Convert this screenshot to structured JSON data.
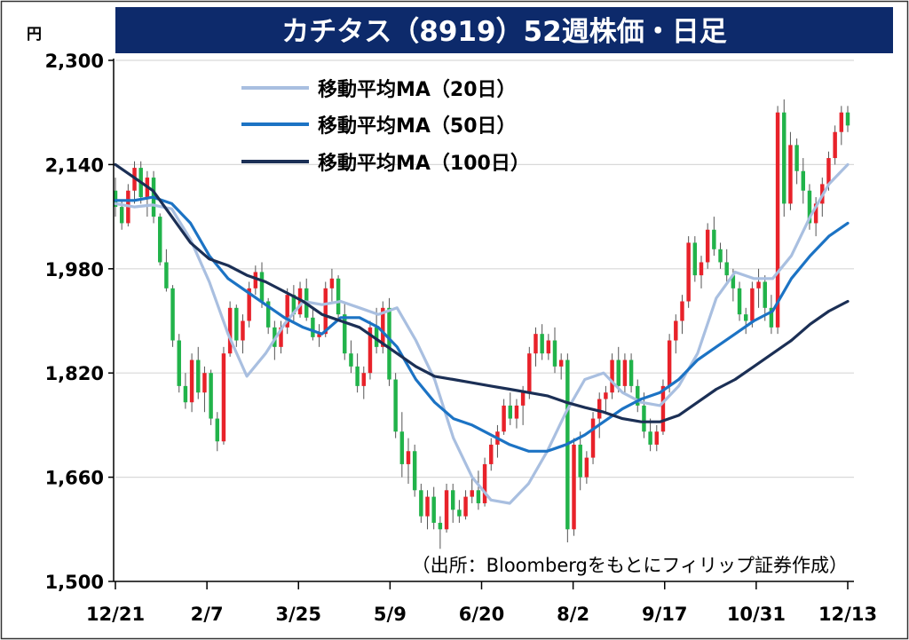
{
  "title": "カチタス（8919）52週株価・日足",
  "unit_label": "円",
  "source_note": "（出所：Bloombergをもとにフィリップ証券作成）",
  "colors": {
    "title_bg": "#0d2a6b",
    "up": "#e8222a",
    "down": "#21b34a",
    "ma20": "#a9bfe0",
    "ma50": "#1c73c4",
    "ma100": "#1b2f55",
    "grid": "#d9d9d9"
  },
  "chart_data": {
    "type": "candlestick",
    "ylim": [
      1500,
      2300
    ],
    "yticks": [
      1500,
      1660,
      1820,
      1980,
      2140,
      2300
    ],
    "ytick_labels": [
      "1,500",
      "1,660",
      "1,820",
      "1,980",
      "2,140",
      "2,300"
    ],
    "x_tick_labels": [
      "12/21",
      "2/7",
      "3/25",
      "5/9",
      "6/20",
      "8/2",
      "9/17",
      "10/31",
      "12/13"
    ],
    "legend": [
      "移動平均MA（20日）",
      "移動平均MA（50日）",
      "移動平均MA（100日）"
    ],
    "series": [
      {
        "name": "移動平均MA（20日）",
        "values": [
          2080,
          2075,
          2078,
          2072,
          2025,
          1960,
          1880,
          1815,
          1850,
          1895,
          1930,
          1925,
          1930,
          1920,
          1910,
          1920,
          1870,
          1810,
          1720,
          1660,
          1625,
          1620,
          1650,
          1700,
          1760,
          1810,
          1820,
          1790,
          1775,
          1770,
          1800,
          1850,
          1935,
          1975,
          1965,
          1965,
          2000,
          2060,
          2110,
          2140
        ]
      },
      {
        "name": "移動平均MA（50日）",
        "values": [
          2085,
          2085,
          2090,
          2080,
          2050,
          2000,
          1965,
          1945,
          1925,
          1905,
          1890,
          1880,
          1905,
          1905,
          1890,
          1860,
          1810,
          1775,
          1750,
          1740,
          1725,
          1710,
          1700,
          1700,
          1710,
          1725,
          1745,
          1765,
          1780,
          1790,
          1810,
          1840,
          1860,
          1880,
          1900,
          1915,
          1965,
          2000,
          2030,
          2050
        ]
      },
      {
        "name": "移動平均MA（100日）",
        "values": [
          2140,
          2120,
          2100,
          2060,
          2020,
          1995,
          1985,
          1970,
          1960,
          1945,
          1930,
          1910,
          1900,
          1890,
          1870,
          1850,
          1830,
          1815,
          1810,
          1805,
          1800,
          1795,
          1790,
          1785,
          1775,
          1767,
          1760,
          1750,
          1745,
          1745,
          1755,
          1775,
          1795,
          1810,
          1830,
          1850,
          1870,
          1895,
          1915,
          1930
        ]
      }
    ],
    "candles": [
      [
        2100,
        2120,
        2060,
        2075
      ],
      [
        2075,
        2085,
        2040,
        2050
      ],
      [
        2050,
        2110,
        2045,
        2100
      ],
      [
        2100,
        2145,
        2080,
        2135
      ],
      [
        2135,
        2145,
        2080,
        2090
      ],
      [
        2090,
        2130,
        2060,
        2120
      ],
      [
        2120,
        2130,
        2050,
        2060
      ],
      [
        2060,
        2065,
        1985,
        1990
      ],
      [
        1990,
        2010,
        1945,
        1950
      ],
      [
        1950,
        1955,
        1860,
        1870
      ],
      [
        1870,
        1880,
        1790,
        1800
      ],
      [
        1800,
        1820,
        1765,
        1775
      ],
      [
        1775,
        1850,
        1760,
        1840
      ],
      [
        1840,
        1860,
        1780,
        1790
      ],
      [
        1790,
        1830,
        1760,
        1820
      ],
      [
        1820,
        1825,
        1740,
        1750
      ],
      [
        1750,
        1760,
        1700,
        1715
      ],
      [
        1715,
        1860,
        1710,
        1850
      ],
      [
        1850,
        1930,
        1845,
        1920
      ],
      [
        1920,
        1925,
        1860,
        1870
      ],
      [
        1870,
        1910,
        1850,
        1900
      ],
      [
        1900,
        1960,
        1890,
        1950
      ],
      [
        1950,
        1985,
        1940,
        1975
      ],
      [
        1975,
        1990,
        1920,
        1930
      ],
      [
        1930,
        1935,
        1880,
        1890
      ],
      [
        1890,
        1900,
        1840,
        1860
      ],
      [
        1860,
        1900,
        1850,
        1890
      ],
      [
        1890,
        1950,
        1880,
        1940
      ],
      [
        1940,
        1955,
        1900,
        1910
      ],
      [
        1910,
        1960,
        1905,
        1950
      ],
      [
        1950,
        1965,
        1900,
        1905
      ],
      [
        1905,
        1920,
        1870,
        1875
      ],
      [
        1875,
        1895,
        1860,
        1880
      ],
      [
        1880,
        1960,
        1875,
        1950
      ],
      [
        1950,
        1980,
        1930,
        1965
      ],
      [
        1965,
        1970,
        1900,
        1910
      ],
      [
        1910,
        1930,
        1840,
        1850
      ],
      [
        1850,
        1870,
        1820,
        1830
      ],
      [
        1830,
        1850,
        1790,
        1800
      ],
      [
        1800,
        1830,
        1780,
        1820
      ],
      [
        1820,
        1900,
        1810,
        1890
      ],
      [
        1890,
        1920,
        1850,
        1860
      ],
      [
        1860,
        1930,
        1850,
        1920
      ],
      [
        1920,
        1935,
        1800,
        1810
      ],
      [
        1810,
        1820,
        1720,
        1730
      ],
      [
        1730,
        1760,
        1660,
        1680
      ],
      [
        1680,
        1720,
        1650,
        1700
      ],
      [
        1700,
        1710,
        1630,
        1640
      ],
      [
        1640,
        1650,
        1590,
        1600
      ],
      [
        1600,
        1640,
        1580,
        1630
      ],
      [
        1630,
        1645,
        1580,
        1590
      ],
      [
        1590,
        1600,
        1550,
        1580
      ],
      [
        1580,
        1650,
        1575,
        1640
      ],
      [
        1640,
        1650,
        1590,
        1610
      ],
      [
        1610,
        1625,
        1590,
        1600
      ],
      [
        1600,
        1640,
        1595,
        1630
      ],
      [
        1630,
        1660,
        1620,
        1640
      ],
      [
        1640,
        1670,
        1610,
        1620
      ],
      [
        1620,
        1690,
        1615,
        1680
      ],
      [
        1680,
        1720,
        1670,
        1710
      ],
      [
        1710,
        1740,
        1690,
        1730
      ],
      [
        1730,
        1780,
        1725,
        1770
      ],
      [
        1770,
        1790,
        1740,
        1750
      ],
      [
        1750,
        1780,
        1735,
        1770
      ],
      [
        1770,
        1800,
        1740,
        1790
      ],
      [
        1790,
        1860,
        1780,
        1850
      ],
      [
        1850,
        1890,
        1830,
        1880
      ],
      [
        1880,
        1895,
        1840,
        1850
      ],
      [
        1850,
        1880,
        1840,
        1870
      ],
      [
        1870,
        1890,
        1820,
        1830
      ],
      [
        1830,
        1850,
        1810,
        1840
      ],
      [
        1840,
        1850,
        1560,
        1580
      ],
      [
        1580,
        1720,
        1570,
        1710
      ],
      [
        1710,
        1730,
        1640,
        1660
      ],
      [
        1660,
        1700,
        1650,
        1690
      ],
      [
        1690,
        1760,
        1680,
        1750
      ],
      [
        1750,
        1790,
        1720,
        1780
      ],
      [
        1780,
        1800,
        1760,
        1790
      ],
      [
        1790,
        1850,
        1780,
        1840
      ],
      [
        1840,
        1860,
        1790,
        1800
      ],
      [
        1800,
        1850,
        1790,
        1840
      ],
      [
        1840,
        1850,
        1790,
        1800
      ],
      [
        1800,
        1810,
        1760,
        1770
      ],
      [
        1770,
        1790,
        1720,
        1730
      ],
      [
        1730,
        1750,
        1700,
        1710
      ],
      [
        1710,
        1740,
        1700,
        1730
      ],
      [
        1730,
        1810,
        1725,
        1800
      ],
      [
        1800,
        1880,
        1790,
        1870
      ],
      [
        1870,
        1910,
        1850,
        1900
      ],
      [
        1900,
        1940,
        1880,
        1930
      ],
      [
        1930,
        2030,
        1920,
        2020
      ],
      [
        2020,
        2030,
        1960,
        1970
      ],
      [
        1970,
        2000,
        1950,
        1990
      ],
      [
        1990,
        2050,
        1980,
        2040
      ],
      [
        2040,
        2060,
        2000,
        2010
      ],
      [
        2010,
        2020,
        1980,
        1990
      ],
      [
        1990,
        2010,
        1960,
        1970
      ],
      [
        1970,
        1980,
        1930,
        1950
      ],
      [
        1950,
        1960,
        1900,
        1910
      ],
      [
        1910,
        1920,
        1880,
        1900
      ],
      [
        1900,
        1960,
        1890,
        1950
      ],
      [
        1950,
        1980,
        1920,
        1960
      ],
      [
        1960,
        1970,
        1900,
        1920
      ],
      [
        1920,
        1940,
        1880,
        1890
      ],
      [
        1890,
        2230,
        1880,
        2220
      ],
      [
        2220,
        2240,
        2060,
        2080
      ],
      [
        2080,
        2190,
        2070,
        2170
      ],
      [
        2170,
        2180,
        2110,
        2130
      ],
      [
        2130,
        2150,
        2080,
        2100
      ],
      [
        2100,
        2110,
        2040,
        2050
      ],
      [
        2050,
        2090,
        2030,
        2080
      ],
      [
        2080,
        2120,
        2060,
        2110
      ],
      [
        2110,
        2160,
        2100,
        2150
      ],
      [
        2150,
        2200,
        2140,
        2190
      ],
      [
        2190,
        2230,
        2170,
        2220
      ],
      [
        2220,
        2230,
        2190,
        2200
      ]
    ]
  }
}
